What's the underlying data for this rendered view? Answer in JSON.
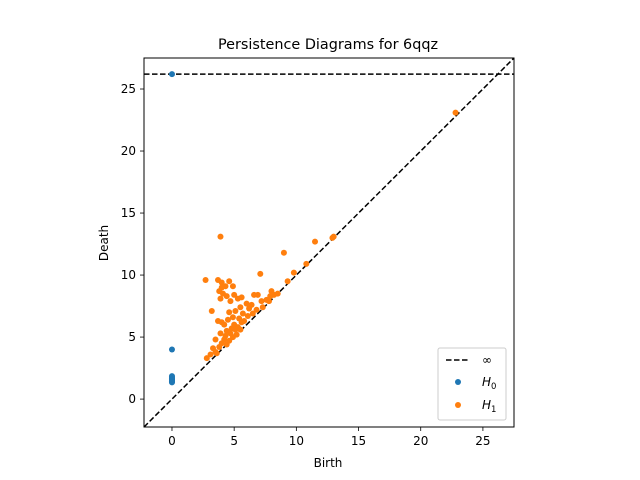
{
  "chart_data": {
    "type": "scatter",
    "title": "Persistence Diagrams for 6qqz",
    "xlabel": "Birth",
    "ylabel": "Death",
    "xlim": [
      -2.25,
      27.5
    ],
    "ylim": [
      -2.25,
      27.5
    ],
    "x_ticks": [
      0,
      5,
      10,
      15,
      20,
      25
    ],
    "y_ticks": [
      0,
      5,
      10,
      15,
      20,
      25
    ],
    "grid": false,
    "legend_position": "lower right",
    "infinity_death": 26.2,
    "diagonal": {
      "from": [
        -2.25,
        -2.25
      ],
      "to": [
        27.5,
        27.5
      ],
      "style": "dashed",
      "color": "#000000"
    },
    "series": [
      {
        "name": "∞",
        "kind": "line",
        "style": "dashed",
        "color": "#000000",
        "y": 26.2
      },
      {
        "name": "H0",
        "kind": "scatter",
        "color": "#1f77b4",
        "points": [
          [
            0,
            26.2
          ],
          [
            0,
            4.0
          ],
          [
            0,
            1.85
          ],
          [
            0,
            1.75
          ],
          [
            0,
            1.65
          ],
          [
            0,
            1.6
          ],
          [
            0,
            1.55
          ],
          [
            0,
            1.5
          ],
          [
            0,
            1.45
          ],
          [
            0,
            1.4
          ],
          [
            0,
            1.35
          ]
        ]
      },
      {
        "name": "H1",
        "kind": "scatter",
        "color": "#ff7f0e",
        "points": [
          [
            22.8,
            23.1
          ],
          [
            3.9,
            13.1
          ],
          [
            11.5,
            12.7
          ],
          [
            13.0,
            13.1
          ],
          [
            9.0,
            11.8
          ],
          [
            10.8,
            10.9
          ],
          [
            9.8,
            10.2
          ],
          [
            7.1,
            10.1
          ],
          [
            2.7,
            9.6
          ],
          [
            3.7,
            9.6
          ],
          [
            4.0,
            9.4
          ],
          [
            4.6,
            9.5
          ],
          [
            4.0,
            9.0
          ],
          [
            4.3,
            9.1
          ],
          [
            4.9,
            9.1
          ],
          [
            3.8,
            8.7
          ],
          [
            4.1,
            8.5
          ],
          [
            4.4,
            8.3
          ],
          [
            5.0,
            8.4
          ],
          [
            3.9,
            8.1
          ],
          [
            4.7,
            7.9
          ],
          [
            5.6,
            8.2
          ],
          [
            6.6,
            8.4
          ],
          [
            6.9,
            8.4
          ],
          [
            7.9,
            8.3
          ],
          [
            8.5,
            8.5
          ],
          [
            8.0,
            8.7
          ],
          [
            5.3,
            8.1
          ],
          [
            6.0,
            7.7
          ],
          [
            6.4,
            7.6
          ],
          [
            7.2,
            7.9
          ],
          [
            7.6,
            8.0
          ],
          [
            5.5,
            7.4
          ],
          [
            6.2,
            7.3
          ],
          [
            6.8,
            7.2
          ],
          [
            7.3,
            7.4
          ],
          [
            7.8,
            7.9
          ],
          [
            3.2,
            7.1
          ],
          [
            4.6,
            7.0
          ],
          [
            5.1,
            7.1
          ],
          [
            5.7,
            6.9
          ],
          [
            6.5,
            6.9
          ],
          [
            4.9,
            6.6
          ],
          [
            5.4,
            6.5
          ],
          [
            6.1,
            6.7
          ],
          [
            3.7,
            6.3
          ],
          [
            4.0,
            6.2
          ],
          [
            4.5,
            6.4
          ],
          [
            5.8,
            6.3
          ],
          [
            4.2,
            6.0
          ],
          [
            5.0,
            6.0
          ],
          [
            5.6,
            6.2
          ],
          [
            4.8,
            5.7
          ],
          [
            5.3,
            5.8
          ],
          [
            4.4,
            5.5
          ],
          [
            5.1,
            5.6
          ],
          [
            5.5,
            5.6
          ],
          [
            3.9,
            5.3
          ],
          [
            4.7,
            5.3
          ],
          [
            5.2,
            5.2
          ],
          [
            4.3,
            5.1
          ],
          [
            4.9,
            5.0
          ],
          [
            3.5,
            4.8
          ],
          [
            4.2,
            4.8
          ],
          [
            4.6,
            4.7
          ],
          [
            4.0,
            4.5
          ],
          [
            4.4,
            4.4
          ],
          [
            3.3,
            4.1
          ],
          [
            3.8,
            4.2
          ],
          [
            3.1,
            3.6
          ],
          [
            3.5,
            3.8
          ],
          [
            2.8,
            3.3
          ],
          [
            3.6,
            3.7
          ],
          [
            9.3,
            9.5
          ],
          [
            8.2,
            8.4
          ],
          [
            12.9,
            13.0
          ]
        ]
      }
    ]
  },
  "legend": {
    "entries": [
      {
        "label": "∞",
        "marker": "dashed-line",
        "color": "#000000"
      },
      {
        "label": "H",
        "sub": "0",
        "marker": "dot",
        "color": "#1f77b4"
      },
      {
        "label": "H",
        "sub": "1",
        "marker": "dot",
        "color": "#ff7f0e"
      }
    ]
  }
}
